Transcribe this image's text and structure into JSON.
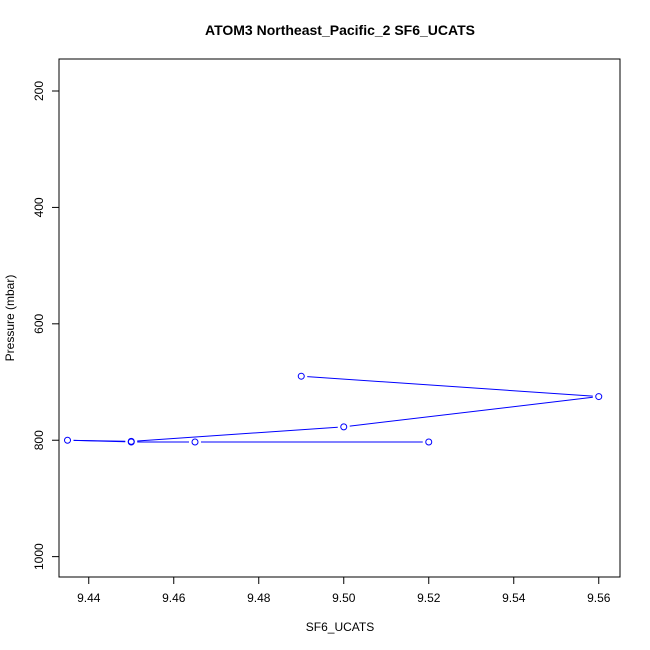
{
  "chart_data": {
    "type": "line",
    "title": "ATOM3 Northeast_Pacific_2 SF6_UCATS",
    "xlabel": "SF6_UCATS",
    "ylabel": "Pressure (mbar)",
    "xlim": [
      9.433,
      9.565
    ],
    "ylim": [
      1035,
      145
    ],
    "y_reversed": true,
    "x_ticks": [
      "9.44",
      "9.46",
      "9.48",
      "9.50",
      "9.52",
      "9.54",
      "9.56"
    ],
    "y_ticks": [
      "200",
      "400",
      "600",
      "800",
      "1000"
    ],
    "grid": false,
    "series": [
      {
        "color": "#0000ff",
        "marker": "open-circle",
        "points": [
          {
            "x": 9.49,
            "y": 690
          },
          {
            "x": 9.56,
            "y": 725
          },
          {
            "x": 9.5,
            "y": 777
          },
          {
            "x": 9.45,
            "y": 802
          },
          {
            "x": 9.435,
            "y": 800
          },
          {
            "x": 9.45,
            "y": 803
          },
          {
            "x": 9.465,
            "y": 803
          },
          {
            "x": 9.52,
            "y": 803
          }
        ]
      }
    ]
  }
}
